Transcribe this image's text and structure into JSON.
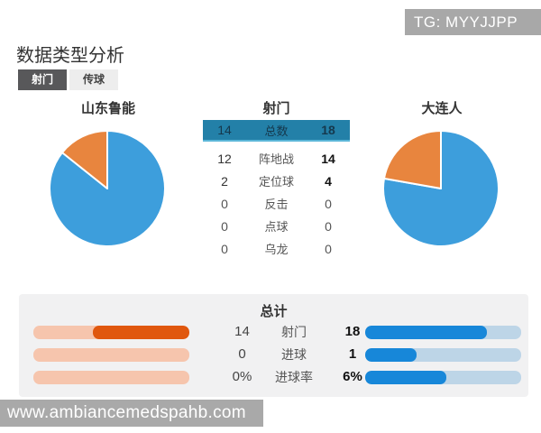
{
  "watermarks": {
    "tg": "TG: MYYJJPP",
    "site": "www.ambiancemedspahb.com"
  },
  "header": {
    "title": "数据类型分析"
  },
  "tabs": [
    {
      "label": "射门",
      "active": true
    },
    {
      "label": "传球",
      "active": false
    }
  ],
  "teams": {
    "home": "山东鲁能",
    "away": "大连人"
  },
  "stat_table": {
    "title": "射门",
    "header": {
      "home": "14",
      "label": "总数",
      "away": "18"
    },
    "rows": [
      {
        "home": "12",
        "label": "阵地战",
        "away": "14"
      },
      {
        "home": "2",
        "label": "定位球",
        "away": "4"
      },
      {
        "home": "0",
        "label": "反击",
        "away": "0"
      },
      {
        "home": "0",
        "label": "点球",
        "away": "0"
      },
      {
        "home": "0",
        "label": "乌龙",
        "away": "0"
      }
    ]
  },
  "totals": {
    "title": "总计",
    "rows": [
      {
        "home": "14",
        "label": "射门",
        "away": "18",
        "home_fill": 0.62,
        "away_fill": 0.78
      },
      {
        "home": "0",
        "label": "进球",
        "away": "1",
        "home_fill": 0,
        "away_fill": 0.33
      },
      {
        "home": "0%",
        "label": "进球率",
        "away": "6%",
        "home_fill": 0,
        "away_fill": 0.52
      }
    ]
  },
  "colors": {
    "table_header_bg": "#2380a8",
    "table_header_border": "#5cb6d8",
    "pie_blue": "#3d9edc",
    "pie_orange": "#e8853e",
    "bar_home_fill": "#e0570e",
    "bar_home_track": "#f6c5ad",
    "bar_away_fill": "#1787d9",
    "bar_away_track": "#bdd5e7",
    "tab_active_bg": "#58585a",
    "watermark_bg": "#a9a9a9"
  },
  "chart_data": [
    {
      "type": "pie",
      "title": "山东鲁能",
      "labels": [
        "阵地战",
        "定位球"
      ],
      "values": [
        12,
        2
      ],
      "colors": [
        "#3d9edc",
        "#e8853e"
      ],
      "start_angle": "top",
      "direction": "clockwise"
    },
    {
      "type": "pie",
      "title": "大连人",
      "labels": [
        "阵地战",
        "定位球"
      ],
      "values": [
        14,
        4
      ],
      "colors": [
        "#3d9edc",
        "#e8853e"
      ],
      "start_angle": "top",
      "direction": "clockwise"
    }
  ]
}
